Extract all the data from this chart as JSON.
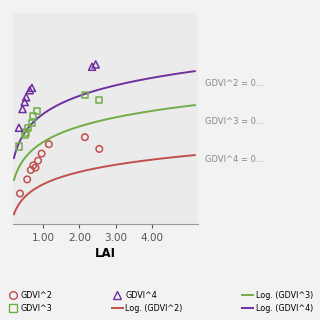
{
  "gdvi2_x": [
    0.35,
    0.55,
    0.65,
    0.72,
    0.78,
    0.85,
    0.95,
    1.15,
    2.15,
    2.55
  ],
  "gdvi2_y": [
    0.18,
    0.24,
    0.28,
    0.3,
    0.29,
    0.32,
    0.35,
    0.39,
    0.42,
    0.37
  ],
  "gdvi3_x": [
    0.32,
    0.48,
    0.52,
    0.58,
    0.68,
    0.72,
    0.82,
    2.15,
    2.55
  ],
  "gdvi3_y": [
    0.38,
    0.43,
    0.44,
    0.46,
    0.48,
    0.51,
    0.53,
    0.6,
    0.58
  ],
  "gdvi4_x": [
    0.32,
    0.42,
    0.48,
    0.52,
    0.62,
    0.68,
    2.35,
    2.45
  ],
  "gdvi4_y": [
    0.46,
    0.54,
    0.57,
    0.59,
    0.62,
    0.63,
    0.72,
    0.73
  ],
  "a2": 0.075,
  "b2": 0.22,
  "a3": 0.095,
  "b3": 0.4,
  "a4": 0.11,
  "b4": 0.52,
  "color_gdvi2": "#c0504d",
  "color_gdvi3": "#70ad47",
  "color_gdvi4": "#7030a0",
  "bg_color": "#ebebeb",
  "outer_bg": "#f2f2f2",
  "xlim": [
    0.15,
    5.3
  ],
  "ylim": [
    0.05,
    0.95
  ],
  "xticks": [
    1.0,
    2.0,
    3.0,
    4.0
  ],
  "xlabel": "LAI",
  "ann1": "GDVI^2 = 0...",
  "ann2": "GDVI^3 = 0...",
  "ann3": "GDVI^4 = 0..."
}
